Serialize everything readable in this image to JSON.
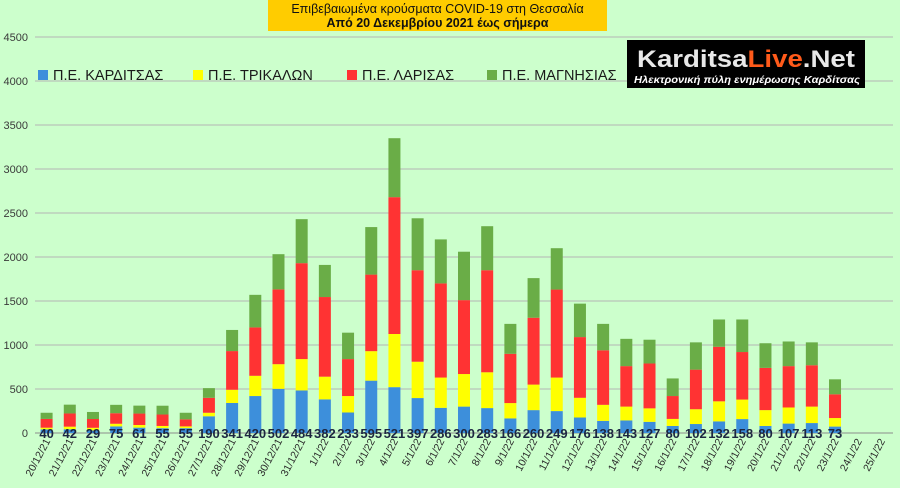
{
  "chart_data": {
    "type": "bar",
    "stacked": true,
    "title": "Επιβεβαιωμένα κρούσματα COVID-19 στη Θεσσαλία",
    "subtitle": "Από 20 Δεκεμβρίου 2021 έως σήμερα",
    "xlabel": "",
    "ylabel": "",
    "ylim": [
      0,
      4500
    ],
    "yticks": [
      0,
      500,
      1000,
      1500,
      2000,
      2500,
      3000,
      3500,
      4000,
      4500
    ],
    "grid": true,
    "legend_position": "top-left",
    "categories": [
      "20/12/21",
      "21/12/21",
      "22/12/21",
      "23/12/21",
      "24/12/21",
      "25/12/21",
      "26/12/21",
      "27/12/21",
      "28/12/21",
      "29/12/21",
      "30/12/21",
      "31/12/21",
      "1/1/22",
      "2/1/22",
      "3/1/22",
      "4/1/22",
      "5/1/22",
      "6/1/22",
      "7/1/22",
      "8/1/22",
      "9/1/22",
      "10/1/22",
      "11/1/22",
      "12/1/22",
      "13/1/22",
      "14/1/22",
      "15/1/22",
      "16/1/22",
      "17/1/22",
      "18/1/22",
      "19/1/22",
      "20/1/22",
      "21/1/22",
      "22/1/22",
      "23/1/22",
      "24/1/22",
      "25/1/22"
    ],
    "series": [
      {
        "name": "Π.Ε. ΚΑΡΔΙΤΣΑΣ",
        "color": "#3d8fdb",
        "show_data_labels": true,
        "values": [
          40,
          42,
          29,
          75,
          61,
          55,
          55,
          190,
          341,
          420,
          502,
          484,
          382,
          233,
          595,
          521,
          397,
          286,
          300,
          283,
          166,
          260,
          249,
          176,
          138,
          143,
          127,
          80,
          102,
          132,
          158,
          80,
          107,
          113,
          73,
          null,
          null
        ]
      },
      {
        "name": "Π.Ε. ΤΡΙΚΑΛΩΝ",
        "color": "#ffff00",
        "show_data_labels": false,
        "values": [
          20,
          30,
          30,
          30,
          30,
          25,
          20,
          40,
          150,
          230,
          280,
          356,
          258,
          187,
          335,
          604,
          413,
          344,
          370,
          407,
          174,
          290,
          381,
          224,
          182,
          157,
          153,
          80,
          168,
          228,
          222,
          180,
          183,
          187,
          97,
          null,
          null
        ]
      },
      {
        "name": "Π.Ε. ΛΑΡΙΣΑΣ",
        "color": "#ff3333",
        "show_data_labels": false,
        "values": [
          100,
          150,
          100,
          120,
          130,
          130,
          80,
          170,
          440,
          550,
          850,
          1090,
          905,
          420,
          870,
          1555,
          1040,
          1070,
          840,
          1160,
          560,
          760,
          1000,
          690,
          620,
          460,
          510,
          260,
          450,
          620,
          540,
          480,
          470,
          470,
          270,
          null,
          null
        ]
      },
      {
        "name": "Π.Ε. ΜΑΓΝΗΣΙΑΣ",
        "color": "#6aad47",
        "show_data_labels": false,
        "values": [
          70,
          100,
          80,
          95,
          90,
          100,
          75,
          110,
          240,
          370,
          400,
          500,
          365,
          300,
          540,
          670,
          590,
          500,
          550,
          500,
          340,
          450,
          470,
          380,
          300,
          310,
          270,
          200,
          310,
          310,
          370,
          280,
          280,
          260,
          170,
          null,
          null
        ]
      }
    ]
  },
  "logo": {
    "part1": "Karditsa",
    "part2": "Live",
    "part3": ".Net",
    "tagline": "Ηλεκτρονική πύλη ενημέρωσης Καρδίτσας"
  },
  "colors": {
    "background": "#ccffcc",
    "title_box": "#ffcc00"
  }
}
